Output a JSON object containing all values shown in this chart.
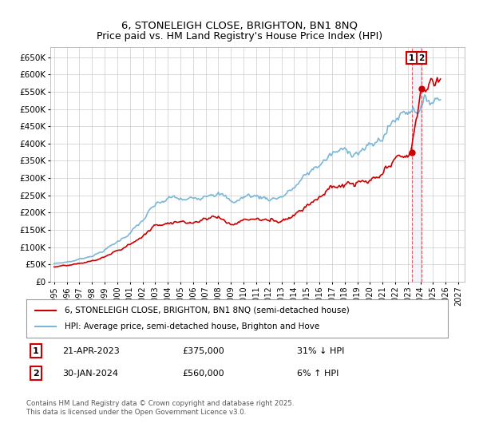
{
  "title_line1": "6, STONELEIGH CLOSE, BRIGHTON, BN1 8NQ",
  "title_line2": "Price paid vs. HM Land Registry's House Price Index (HPI)",
  "ylim": [
    0,
    680000
  ],
  "yticks": [
    0,
    50000,
    100000,
    150000,
    200000,
    250000,
    300000,
    350000,
    400000,
    450000,
    500000,
    550000,
    600000,
    650000
  ],
  "ytick_labels": [
    "£0",
    "£50K",
    "£100K",
    "£150K",
    "£200K",
    "£250K",
    "£300K",
    "£350K",
    "£400K",
    "£450K",
    "£500K",
    "£550K",
    "£600K",
    "£650K"
  ],
  "xlim_start": 1994.7,
  "xlim_end": 2027.5,
  "xticks": [
    1995,
    1996,
    1997,
    1998,
    1999,
    2000,
    2001,
    2002,
    2003,
    2004,
    2005,
    2006,
    2007,
    2008,
    2009,
    2010,
    2011,
    2012,
    2013,
    2014,
    2015,
    2016,
    2017,
    2018,
    2019,
    2020,
    2021,
    2022,
    2023,
    2024,
    2025,
    2026,
    2027
  ],
  "hpi_color": "#7ab8d9",
  "price_color": "#cc0000",
  "annotation1_date": 2023.3,
  "annotation1_price": 375000,
  "annotation2_date": 2024.08,
  "annotation2_price": 560000,
  "vline_color": "#ddaaaa",
  "vline_fill": "#eeeeff",
  "legend_label_price": "6, STONELEIGH CLOSE, BRIGHTON, BN1 8NQ (semi-detached house)",
  "legend_label_hpi": "HPI: Average price, semi-detached house, Brighton and Hove",
  "table_row1": [
    "1",
    "21-APR-2023",
    "£375,000",
    "31% ↓ HPI"
  ],
  "table_row2": [
    "2",
    "30-JAN-2024",
    "£560,000",
    "6% ↑ HPI"
  ],
  "footer": "Contains HM Land Registry data © Crown copyright and database right 2025.\nThis data is licensed under the Open Government Licence v3.0.",
  "background_color": "#ffffff",
  "grid_color": "#cccccc"
}
